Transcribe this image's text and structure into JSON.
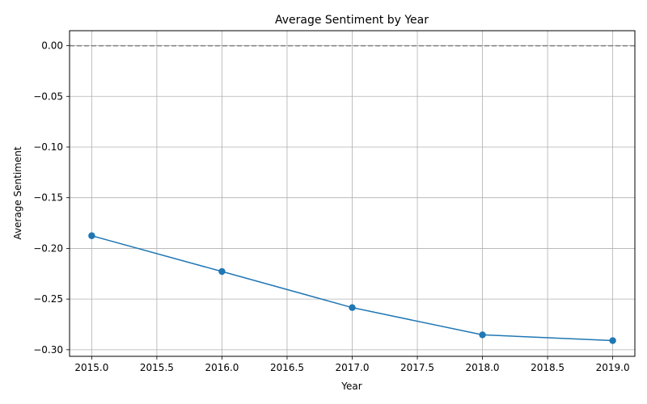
{
  "chart_data": {
    "type": "line",
    "title": "Average Sentiment by Year",
    "xlabel": "Year",
    "ylabel": "Average Sentiment",
    "x": [
      2015,
      2016,
      2017,
      2018,
      2019
    ],
    "series": [
      {
        "values": [
          -0.1875,
          -0.2228,
          -0.2584,
          -0.2853,
          -0.291
        ],
        "color": "#1f77b4",
        "marker": "circle"
      }
    ],
    "reference_line": {
      "y": 0.0,
      "style": "dashed",
      "color": "#808080"
    },
    "xlim": [
      2014.83,
      2019.17
    ],
    "ylim": [
      -0.3065,
      0.0148
    ],
    "xticks": [
      "2015.0",
      "2015.5",
      "2016.0",
      "2016.5",
      "2017.0",
      "2017.5",
      "2018.0",
      "2018.5",
      "2019.0"
    ],
    "xtick_values": [
      2015.0,
      2015.5,
      2016.0,
      2016.5,
      2017.0,
      2017.5,
      2018.0,
      2018.5,
      2019.0
    ],
    "yticks": [
      "0.00",
      "−0.05",
      "−0.10",
      "−0.15",
      "−0.20",
      "−0.25",
      "−0.30"
    ],
    "ytick_values": [
      0.0,
      -0.05,
      -0.1,
      -0.15,
      -0.2,
      -0.25,
      -0.3
    ],
    "grid": true,
    "legend": "none"
  }
}
